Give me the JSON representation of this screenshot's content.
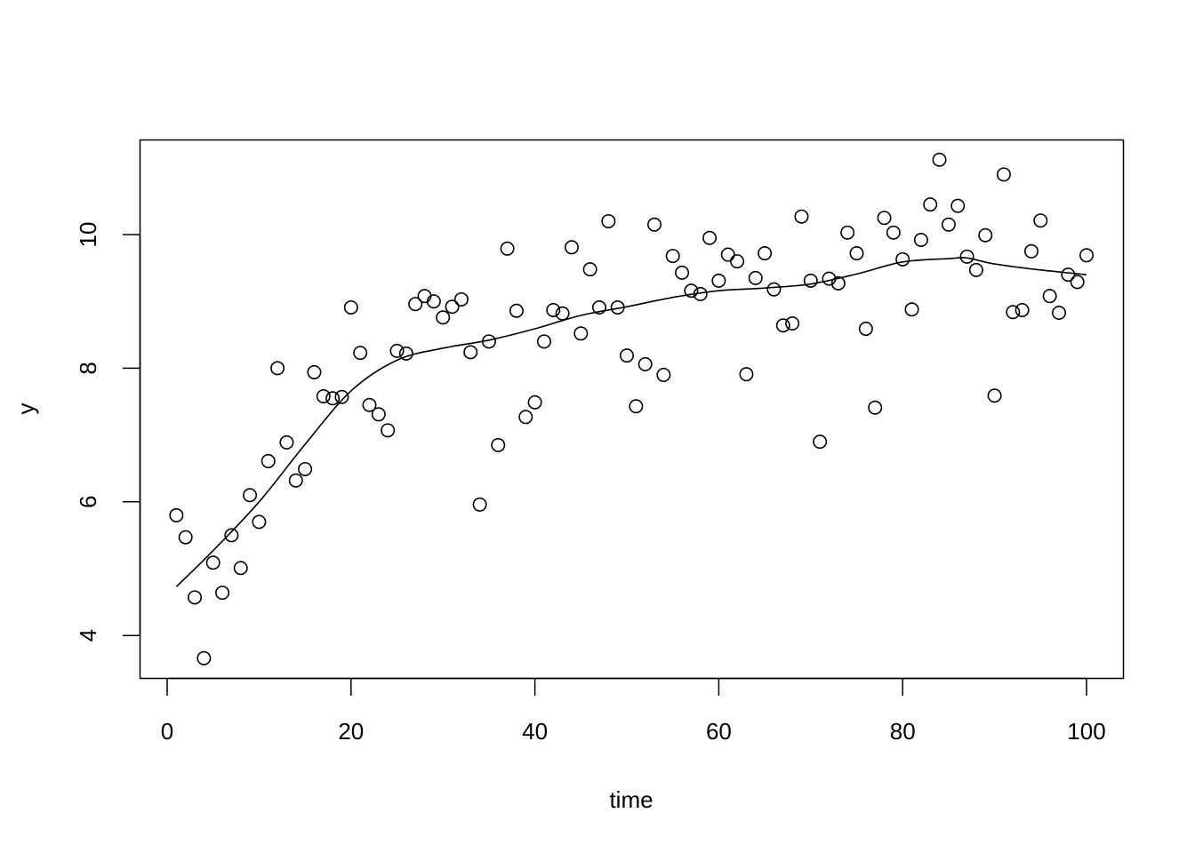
{
  "chart_data": {
    "type": "scatter",
    "title": "",
    "xlabel": "time",
    "ylabel": "y",
    "xlim": [
      0,
      100
    ],
    "ylim": [
      3.6,
      11.2
    ],
    "grid": false,
    "legend": null,
    "x_ticks": [
      0,
      20,
      40,
      60,
      80,
      100
    ],
    "y_ticks": [
      4,
      6,
      8,
      10
    ],
    "series": [
      {
        "name": "observations",
        "marker": "open-circle",
        "x": [
          1,
          2,
          3,
          4,
          5,
          6,
          7,
          8,
          9,
          10,
          11,
          12,
          13,
          14,
          15,
          16,
          17,
          18,
          19,
          20,
          21,
          22,
          23,
          24,
          25,
          26,
          27,
          28,
          29,
          30,
          31,
          32,
          33,
          34,
          35,
          36,
          37,
          38,
          39,
          40,
          41,
          42,
          43,
          44,
          45,
          46,
          47,
          48,
          49,
          50,
          51,
          52,
          53,
          54,
          55,
          56,
          57,
          58,
          59,
          60,
          61,
          62,
          63,
          64,
          65,
          66,
          67,
          68,
          69,
          70,
          71,
          72,
          73,
          74,
          75,
          76,
          77,
          78,
          79,
          80,
          81,
          82,
          83,
          84,
          85,
          86,
          87,
          88,
          89,
          90,
          91,
          92,
          93,
          94,
          95,
          96,
          97,
          98,
          99,
          100
        ],
        "y": [
          5.8,
          5.47,
          4.57,
          3.66,
          5.09,
          4.64,
          5.5,
          5.01,
          6.1,
          5.7,
          6.61,
          8.0,
          6.89,
          6.32,
          6.49,
          7.94,
          7.58,
          7.55,
          7.57,
          8.91,
          8.23,
          7.45,
          7.31,
          7.07,
          8.26,
          8.22,
          8.96,
          9.08,
          9.0,
          8.76,
          8.92,
          9.03,
          8.24,
          5.96,
          8.4,
          6.85,
          9.79,
          8.86,
          7.27,
          7.49,
          8.4,
          8.87,
          8.82,
          9.81,
          8.52,
          9.48,
          8.91,
          10.2,
          8.91,
          8.19,
          7.43,
          8.06,
          10.15,
          7.9,
          9.68,
          9.43,
          9.16,
          9.11,
          9.95,
          9.31,
          9.7,
          9.6,
          7.91,
          9.35,
          9.72,
          9.18,
          8.64,
          8.67,
          10.27,
          9.31,
          6.9,
          9.34,
          9.27,
          10.03,
          9.72,
          8.59,
          7.41,
          10.25,
          10.03,
          9.63,
          8.88,
          9.92,
          10.45,
          11.12,
          10.15,
          10.43,
          9.67,
          9.47,
          9.99,
          7.59,
          10.9,
          8.84,
          8.87,
          9.75,
          10.21,
          9.08,
          8.83,
          9.4,
          9.29,
          9.69
        ]
      },
      {
        "name": "smooth",
        "type": "line",
        "x": [
          1,
          5,
          10,
          15,
          20,
          25,
          30,
          35,
          40,
          45,
          50,
          55,
          60,
          65,
          70,
          75,
          80,
          85,
          87,
          90,
          95,
          100
        ],
        "y": [
          4.73,
          5.27,
          6.0,
          6.86,
          7.66,
          8.12,
          8.3,
          8.42,
          8.59,
          8.79,
          8.92,
          9.06,
          9.16,
          9.2,
          9.26,
          9.41,
          9.59,
          9.64,
          9.65,
          9.56,
          9.47,
          9.4
        ]
      }
    ]
  },
  "axes": {
    "x_label": "time",
    "y_label": "y",
    "x_tick_labels": [
      "0",
      "20",
      "40",
      "60",
      "80",
      "100"
    ],
    "y_tick_labels": [
      "4",
      "6",
      "8",
      "10"
    ]
  }
}
